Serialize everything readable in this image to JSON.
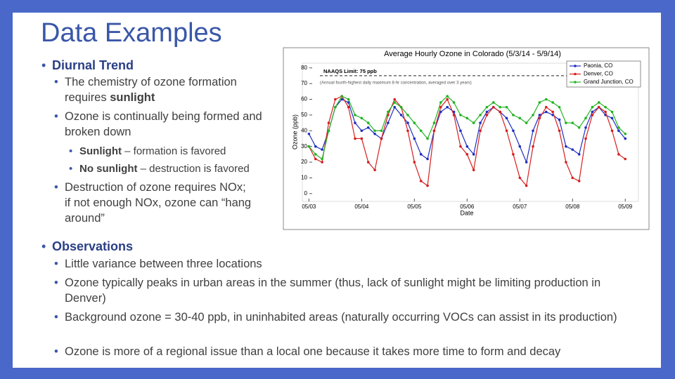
{
  "slide": {
    "title": "Data Examples",
    "bullets": [
      {
        "level": 1,
        "parts": [
          {
            "text": "Diurnal Trend",
            "bold": true
          }
        ]
      },
      {
        "level": 2,
        "parts": [
          {
            "text": "The chemistry of ozone formation requires "
          },
          {
            "text": "sunlight",
            "bold": true
          }
        ]
      },
      {
        "level": 2,
        "parts": [
          {
            "text": "Ozone is continually being formed and broken down"
          }
        ]
      },
      {
        "level": 3,
        "parts": [
          {
            "text": "Sunlight",
            "bold": true
          },
          {
            "text": " – formation is favored"
          }
        ]
      },
      {
        "level": 3,
        "parts": [
          {
            "text": "No sunlight",
            "bold": true
          },
          {
            "text": " – destruction is favored"
          }
        ]
      },
      {
        "level": 2,
        "parts": [
          {
            "text": "Destruction of ozone requires NOx; if not enough NOx, ozone can “hang around”"
          }
        ]
      },
      {
        "level": 1,
        "parts": [
          {
            "text": "Observations",
            "bold": true
          }
        ]
      },
      {
        "level": 2,
        "parts": [
          {
            "text": "Little variance between three locations"
          }
        ]
      },
      {
        "level": 2,
        "parts": [
          {
            "text": "Ozone typically peaks in urban areas in the summer (thus, lack of sunlight might be limiting production in Denver)"
          }
        ]
      },
      {
        "level": 2,
        "parts": [
          {
            "text": "Background ozone = 30-40 ppb, in uninhabited areas (naturally occurring VOCs can assist in its production)"
          }
        ]
      },
      {
        "level": 2,
        "parts": [
          {
            "text": "Ozone is more of a regional issue than a local one because it takes more time to form and decay"
          }
        ]
      }
    ]
  },
  "chart_data": {
    "type": "line",
    "title": "Average Hourly Ozone in Colorado (5/3/14 - 5/9/14)",
    "x_label": "Date",
    "y_label": "Ozone (ppb)",
    "x": [
      0,
      3,
      6,
      9,
      12,
      15,
      18,
      21,
      24,
      27,
      30,
      33,
      36,
      39,
      42,
      45,
      48,
      51,
      54,
      57,
      60,
      63,
      66,
      69,
      72,
      75,
      78,
      81,
      84,
      87,
      90,
      93,
      96,
      99,
      102,
      105,
      108,
      111,
      114,
      117,
      120,
      123,
      126,
      129,
      132,
      135,
      138,
      141,
      144
    ],
    "xlim": [
      -3,
      150
    ],
    "xticks": [
      {
        "value": 0,
        "label": "05/03"
      },
      {
        "value": 24,
        "label": "05/04"
      },
      {
        "value": 48,
        "label": "05/05"
      },
      {
        "value": 72,
        "label": "05/06"
      },
      {
        "value": 96,
        "label": "05/07"
      },
      {
        "value": 120,
        "label": "05/08"
      },
      {
        "value": 144,
        "label": "05/09"
      }
    ],
    "ylim": [
      -5,
      83
    ],
    "yticks": [
      0,
      10,
      20,
      30,
      40,
      50,
      60,
      70,
      80
    ],
    "reference_line": {
      "value": 75,
      "label": "NAAQS Limit: 75 ppb",
      "note": "(Annual fourth-highest daily maximum 8-hr concentration, averaged over 3 years)"
    },
    "legend_position": "upper right",
    "series": [
      {
        "name": "Paonia, CO",
        "color": "#1f2fbf",
        "values": [
          38,
          30,
          28,
          40,
          55,
          60,
          58,
          45,
          40,
          42,
          38,
          35,
          45,
          55,
          50,
          45,
          35,
          25,
          22,
          40,
          52,
          55,
          52,
          40,
          30,
          25,
          45,
          52,
          55,
          52,
          48,
          40,
          30,
          20,
          40,
          50,
          52,
          50,
          47,
          30,
          28,
          25,
          42,
          52,
          55,
          50,
          48,
          40,
          35
        ]
      },
      {
        "name": "Denver, CO",
        "color": "#d81e1e",
        "values": [
          30,
          22,
          20,
          45,
          60,
          62,
          55,
          35,
          35,
          20,
          15,
          35,
          50,
          60,
          55,
          40,
          20,
          8,
          5,
          40,
          55,
          60,
          50,
          30,
          25,
          15,
          40,
          50,
          55,
          52,
          40,
          25,
          10,
          5,
          30,
          48,
          55,
          52,
          40,
          20,
          10,
          8,
          35,
          50,
          55,
          52,
          40,
          25,
          22
        ]
      },
      {
        "name": "Grand Junction, CO",
        "color": "#22b422",
        "values": [
          30,
          25,
          22,
          40,
          55,
          62,
          60,
          50,
          48,
          45,
          40,
          40,
          52,
          58,
          55,
          50,
          45,
          40,
          35,
          45,
          58,
          62,
          58,
          50,
          48,
          45,
          50,
          55,
          58,
          55,
          55,
          50,
          48,
          45,
          50,
          58,
          60,
          58,
          55,
          45,
          45,
          42,
          48,
          55,
          58,
          55,
          52,
          42,
          38
        ]
      }
    ]
  }
}
